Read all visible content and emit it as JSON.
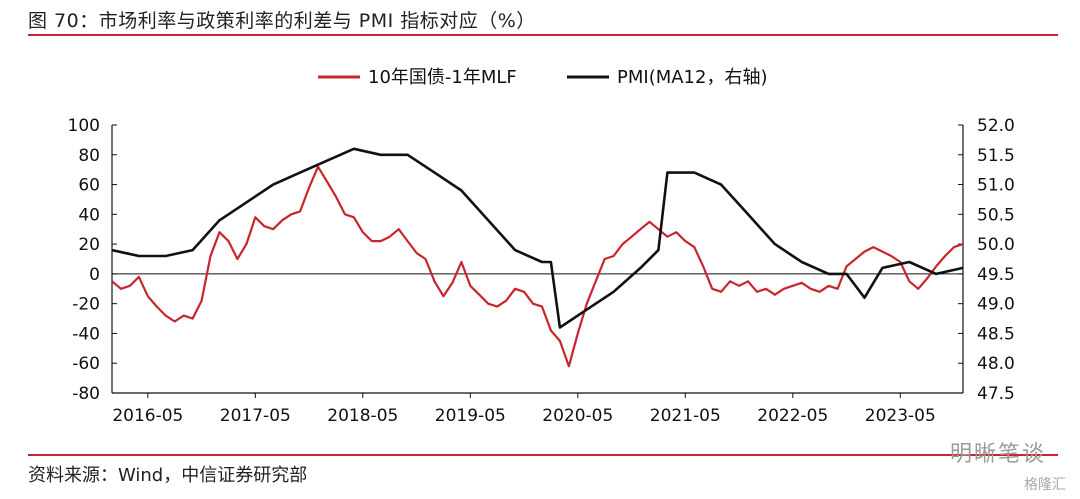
{
  "header": {
    "title": "图 70：市场利率与政策利率的利差与 PMI 指标对应（%）"
  },
  "footer": {
    "source": "资料来源：Wind，中信证券研究部",
    "watermark": "明晰笔谈",
    "watermark2": "格隆汇"
  },
  "chart_data": {
    "type": "line",
    "title": "",
    "legend": {
      "placement": "top-center",
      "entries": [
        "10年国债-1年MLF",
        "PMI(MA12，右轴)"
      ]
    },
    "x_ticks": [
      "2016-05",
      "2017-05",
      "2018-05",
      "2019-05",
      "2020-05",
      "2021-05",
      "2022-05",
      "2023-05"
    ],
    "x_range": [
      "2016-01",
      "2023-12"
    ],
    "y_left": {
      "min": -80,
      "max": 100,
      "step": 20,
      "ticks": [
        "100",
        "80",
        "60",
        "40",
        "20",
        "0",
        "-20",
        "-40",
        "-60",
        "-80"
      ]
    },
    "y_right": {
      "min": 47.5,
      "max": 52.0,
      "step": 0.5,
      "ticks": [
        "52.0",
        "51.5",
        "51.0",
        "50.5",
        "50.0",
        "49.5",
        "49.0",
        "48.5",
        "48.0",
        "47.5"
      ]
    },
    "zero_line": true,
    "grid": false,
    "series": [
      {
        "name": "10年国债-1年MLF",
        "axis": "left",
        "color": "#c8252c",
        "points": [
          [
            "2016-01",
            -5
          ],
          [
            "2016-02",
            -10
          ],
          [
            "2016-03",
            -8
          ],
          [
            "2016-04",
            -2
          ],
          [
            "2016-05",
            -15
          ],
          [
            "2016-06",
            -22
          ],
          [
            "2016-07",
            -28
          ],
          [
            "2016-08",
            -32
          ],
          [
            "2016-09",
            -28
          ],
          [
            "2016-10",
            -30
          ],
          [
            "2016-11",
            -18
          ],
          [
            "2016-12",
            12
          ],
          [
            "2017-01",
            28
          ],
          [
            "2017-02",
            22
          ],
          [
            "2017-03",
            10
          ],
          [
            "2017-04",
            20
          ],
          [
            "2017-05",
            38
          ],
          [
            "2017-06",
            32
          ],
          [
            "2017-07",
            30
          ],
          [
            "2017-08",
            36
          ],
          [
            "2017-09",
            40
          ],
          [
            "2017-10",
            42
          ],
          [
            "2017-11",
            58
          ],
          [
            "2017-12",
            72
          ],
          [
            "2018-01",
            62
          ],
          [
            "2018-02",
            52
          ],
          [
            "2018-03",
            40
          ],
          [
            "2018-04",
            38
          ],
          [
            "2018-05",
            28
          ],
          [
            "2018-06",
            22
          ],
          [
            "2018-07",
            22
          ],
          [
            "2018-08",
            25
          ],
          [
            "2018-09",
            30
          ],
          [
            "2018-10",
            22
          ],
          [
            "2018-11",
            14
          ],
          [
            "2018-12",
            10
          ],
          [
            "2019-01",
            -5
          ],
          [
            "2019-02",
            -15
          ],
          [
            "2019-03",
            -6
          ],
          [
            "2019-04",
            8
          ],
          [
            "2019-05",
            -8
          ],
          [
            "2019-06",
            -14
          ],
          [
            "2019-07",
            -20
          ],
          [
            "2019-08",
            -22
          ],
          [
            "2019-09",
            -18
          ],
          [
            "2019-10",
            -10
          ],
          [
            "2019-11",
            -12
          ],
          [
            "2019-12",
            -20
          ],
          [
            "2020-01",
            -22
          ],
          [
            "2020-02",
            -38
          ],
          [
            "2020-03",
            -45
          ],
          [
            "2020-04",
            -62
          ],
          [
            "2020-05",
            -40
          ],
          [
            "2020-06",
            -20
          ],
          [
            "2020-07",
            -5
          ],
          [
            "2020-08",
            10
          ],
          [
            "2020-09",
            12
          ],
          [
            "2020-10",
            20
          ],
          [
            "2020-11",
            25
          ],
          [
            "2020-12",
            30
          ],
          [
            "2021-01",
            35
          ],
          [
            "2021-02",
            30
          ],
          [
            "2021-03",
            25
          ],
          [
            "2021-04",
            28
          ],
          [
            "2021-05",
            22
          ],
          [
            "2021-06",
            18
          ],
          [
            "2021-07",
            5
          ],
          [
            "2021-08",
            -10
          ],
          [
            "2021-09",
            -12
          ],
          [
            "2021-10",
            -5
          ],
          [
            "2021-11",
            -8
          ],
          [
            "2021-12",
            -5
          ],
          [
            "2022-01",
            -12
          ],
          [
            "2022-02",
            -10
          ],
          [
            "2022-03",
            -14
          ],
          [
            "2022-04",
            -10
          ],
          [
            "2022-05",
            -8
          ],
          [
            "2022-06",
            -6
          ],
          [
            "2022-07",
            -10
          ],
          [
            "2022-08",
            -12
          ],
          [
            "2022-09",
            -8
          ],
          [
            "2022-10",
            -10
          ],
          [
            "2022-11",
            5
          ],
          [
            "2022-12",
            10
          ],
          [
            "2023-01",
            15
          ],
          [
            "2023-02",
            18
          ],
          [
            "2023-03",
            15
          ],
          [
            "2023-04",
            12
          ],
          [
            "2023-05",
            8
          ],
          [
            "2023-06",
            -5
          ],
          [
            "2023-07",
            -10
          ],
          [
            "2023-08",
            -3
          ],
          [
            "2023-09",
            5
          ],
          [
            "2023-10",
            12
          ],
          [
            "2023-11",
            18
          ],
          [
            "2023-12",
            20
          ]
        ]
      },
      {
        "name": "PMI(MA12，右轴)",
        "axis": "right",
        "color": "#111111",
        "points": [
          [
            "2016-01",
            49.9
          ],
          [
            "2016-04",
            49.8
          ],
          [
            "2016-07",
            49.8
          ],
          [
            "2016-10",
            49.9
          ],
          [
            "2017-01",
            50.4
          ],
          [
            "2017-04",
            50.7
          ],
          [
            "2017-07",
            51.0
          ],
          [
            "2017-10",
            51.2
          ],
          [
            "2018-01",
            51.4
          ],
          [
            "2018-04",
            51.6
          ],
          [
            "2018-07",
            51.5
          ],
          [
            "2018-10",
            51.5
          ],
          [
            "2019-01",
            51.2
          ],
          [
            "2019-04",
            50.9
          ],
          [
            "2019-07",
            50.4
          ],
          [
            "2019-10",
            49.9
          ],
          [
            "2020-01",
            49.7
          ],
          [
            "2020-02",
            49.7
          ],
          [
            "2020-03",
            48.6
          ],
          [
            "2020-06",
            48.9
          ],
          [
            "2020-09",
            49.2
          ],
          [
            "2020-12",
            49.6
          ],
          [
            "2021-02",
            49.9
          ],
          [
            "2021-03",
            51.2
          ],
          [
            "2021-06",
            51.2
          ],
          [
            "2021-09",
            51.0
          ],
          [
            "2021-12",
            50.5
          ],
          [
            "2022-03",
            50.0
          ],
          [
            "2022-06",
            49.7
          ],
          [
            "2022-09",
            49.5
          ],
          [
            "2022-11",
            49.5
          ],
          [
            "2023-01",
            49.1
          ],
          [
            "2023-03",
            49.6
          ],
          [
            "2023-06",
            49.7
          ],
          [
            "2023-09",
            49.5
          ],
          [
            "2023-12",
            49.6
          ]
        ]
      }
    ]
  }
}
